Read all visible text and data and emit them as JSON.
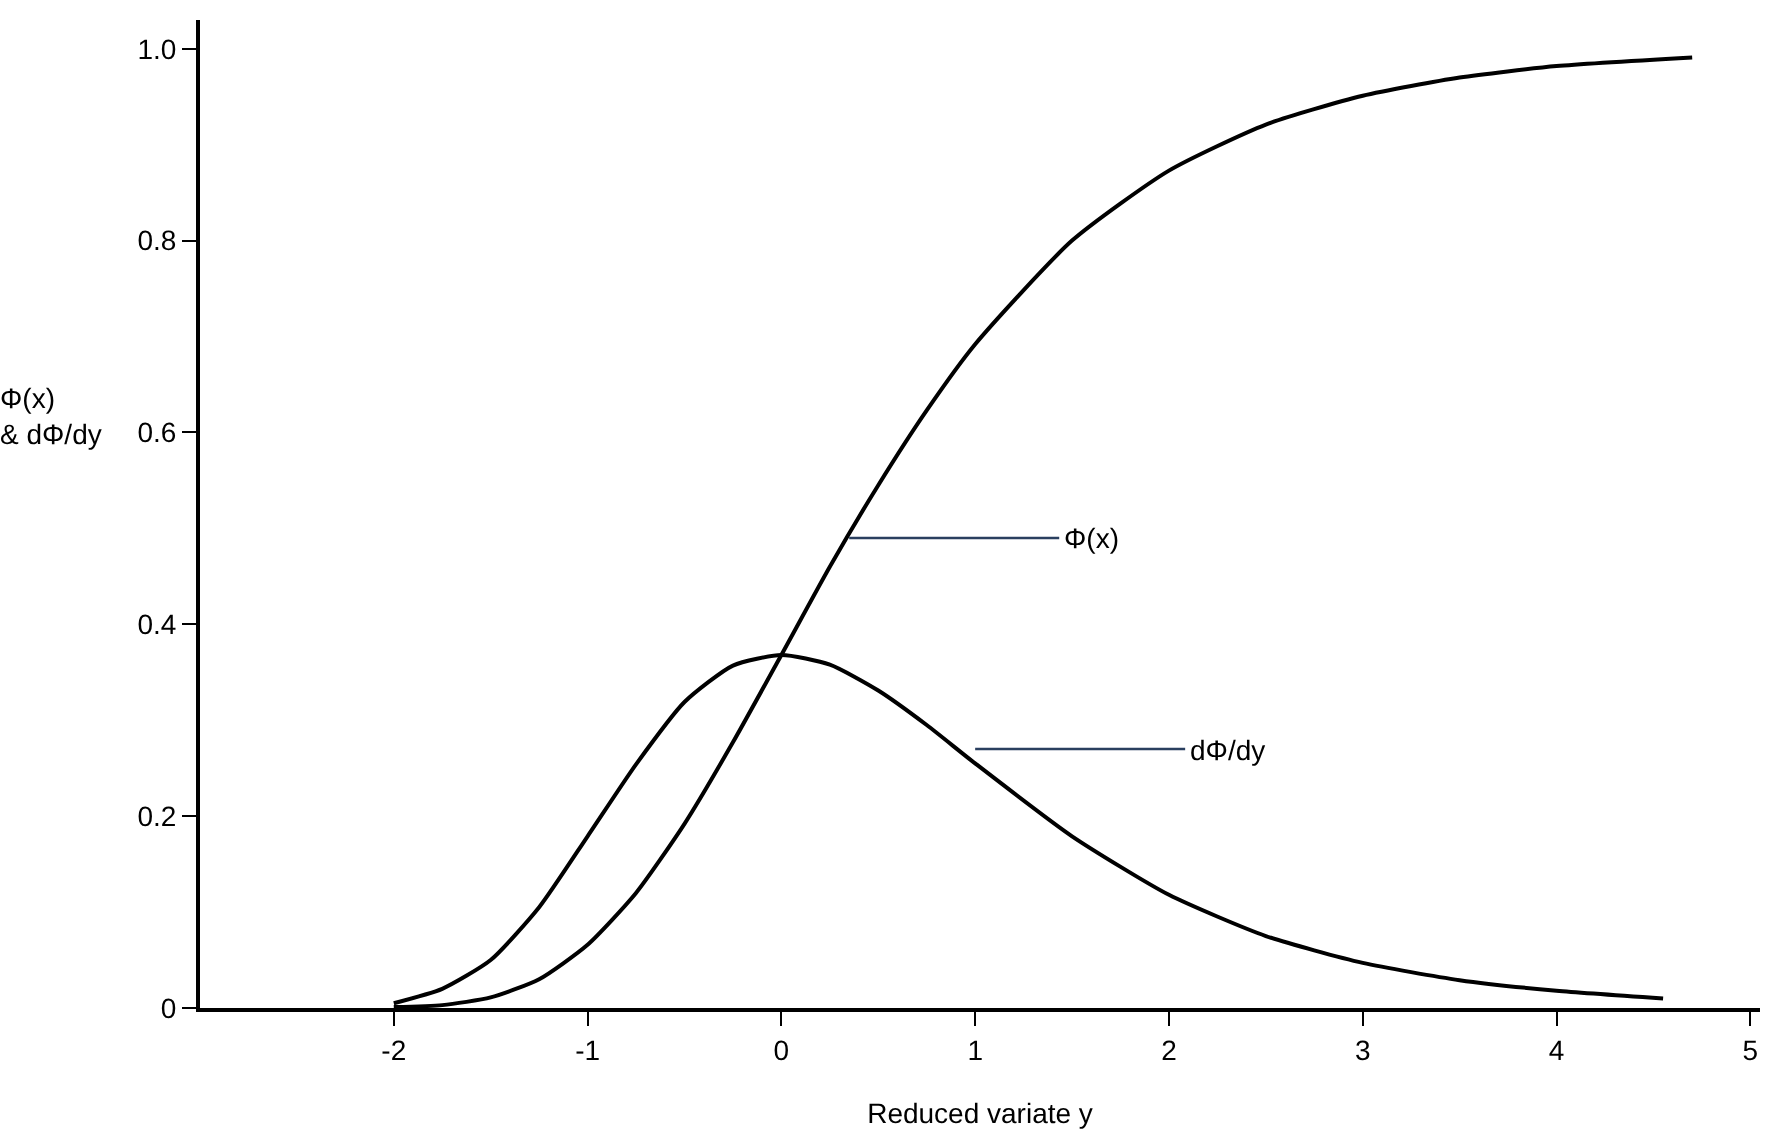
{
  "chart_data": {
    "type": "line",
    "xlabel": "Reduced variate y",
    "ylabel": "Φ(x) & dΦ/dy",
    "series": [
      {
        "color": "#000000",
        "x": [
          -2,
          -1.75,
          -1.5,
          -1.25,
          -1,
          -0.75,
          -0.5,
          -0.25,
          0,
          0.25,
          0.5,
          0.75,
          1,
          1.5,
          2,
          2.5,
          3,
          3.5,
          4,
          4.7
        ],
        "values": [
          0.001,
          0.003,
          0.011,
          0.03,
          0.066,
          0.12,
          0.192,
          0.277,
          0.368,
          0.46,
          0.545,
          0.623,
          0.692,
          0.8,
          0.873,
          0.921,
          0.951,
          0.97,
          0.982,
          0.991
        ]
      },
      {
        "color": "#000000",
        "x": [
          -2,
          -1.75,
          -1.5,
          -1.25,
          -1,
          -0.75,
          -0.5,
          -0.25,
          0,
          0.25,
          0.5,
          0.75,
          1,
          1.5,
          2,
          2.5,
          3,
          3.5,
          4,
          4.55
        ],
        "values": [
          0.005,
          0.02,
          0.05,
          0.105,
          0.179,
          0.254,
          0.319,
          0.357,
          0.368,
          0.358,
          0.331,
          0.295,
          0.255,
          0.179,
          0.118,
          0.075,
          0.047,
          0.029,
          0.018,
          0.01
        ]
      }
    ],
    "xlim": [
      -3,
      5.05
    ],
    "ylim": [
      0,
      1.03
    ],
    "xticks": [
      -2,
      -1,
      0,
      1,
      2,
      3,
      4,
      5
    ],
    "yticks": [
      0,
      {
        "value": 0.2,
        "label": "0.2"
      },
      {
        "value": 0.4,
        "label": "0.4"
      },
      {
        "value": 0.6,
        "label": "0.6"
      },
      {
        "value": 0.8,
        "label": "0.8"
      },
      {
        "value": 1.0,
        "label": "1.0"
      }
    ],
    "annotations": [
      {
        "text": "Φ(x)",
        "x": 0.35,
        "y": 0.49
      },
      {
        "text": "dΦ/dy",
        "x": 1.0,
        "y": 0.27
      }
    ],
    "marker": "none",
    "line_style": "solid"
  }
}
